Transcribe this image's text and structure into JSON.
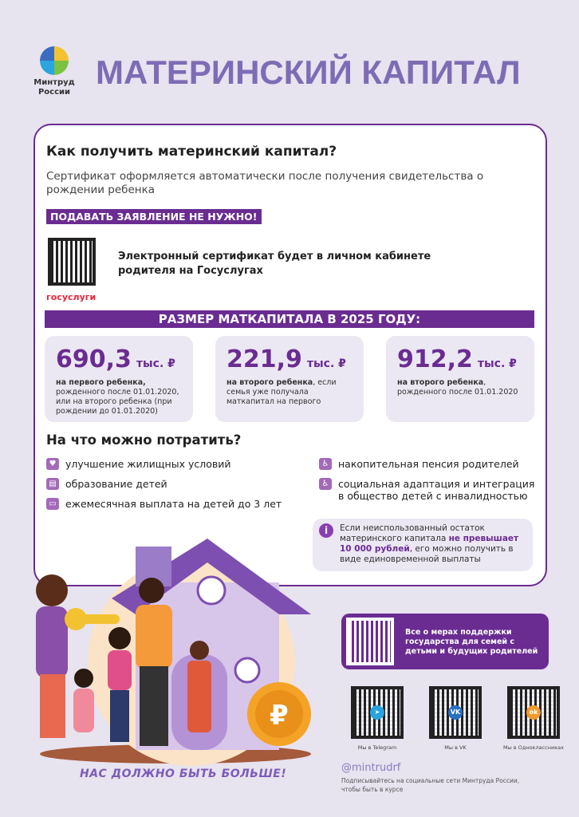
{
  "logo": {
    "line1": "Минтруд",
    "line2": "России"
  },
  "title": "МАТЕРИНСКИЙ КАПИТАЛ",
  "how": {
    "heading": "Как получить материнский капитал?",
    "text": "Сертификат оформляется автоматически после получения свидетельства о рождении ребенка",
    "banner": "ПОДАВАТЬ ЗАЯВЛЕНИЕ НЕ НУЖНО!",
    "gosuslugi_logo": "госуслуги",
    "ecert": "Электронный сертификат будет в личном кабинете родителя на Госуслугах"
  },
  "amounts": {
    "heading": "РАЗМЕР МАТКАПИТАЛА В 2025 ГОДУ:",
    "unit": "тыс. ₽",
    "items": [
      {
        "value": "690,3",
        "bold": "на первого ребенка,",
        "text": " рожденного после 01.01.2020, или на второго ребенка (при рождении до 01.01.2020)"
      },
      {
        "value": "221,9",
        "bold": "на второго ребенка",
        "text": ", если семья уже получала маткапитал на первого"
      },
      {
        "value": "912,2",
        "bold": "на второго ребенка",
        "text": ", рожденного после 01.01.2020"
      }
    ]
  },
  "spend": {
    "heading": "На что можно потратить?",
    "left": [
      {
        "icon": "house-heart-icon",
        "label": "улучшение жилищных условий"
      },
      {
        "icon": "book-icon",
        "label": "образование детей"
      },
      {
        "icon": "card-icon",
        "label": "ежемесячная выплата на детей до 3 лет"
      }
    ],
    "right": [
      {
        "icon": "rocking-chair-icon",
        "label": "накопительная пенсия родителей"
      },
      {
        "icon": "wheelchair-icon",
        "label": "социальная адаптация и интеграция в общество детей с инвалидностью"
      }
    ],
    "note": {
      "part1": "Если неиспользованный остаток материнского капитала ",
      "bold": "не превышает 10 000 рублей",
      "part2": ", его можно получить в виде единовременной выплаты"
    }
  },
  "slogan": "НАС ДОЛЖНО БЫТЬ БОЛЬШЕ!",
  "support": "Все о мерах поддержки государства для семей с детьми и будущих родителей",
  "social": [
    {
      "label": "Мы в Telegram",
      "color": "#2aa3dd",
      "glyph": "➤"
    },
    {
      "label": "Мы в VK",
      "color": "#2a6fc0",
      "glyph": "VK"
    },
    {
      "label": "Мы в Одноклассниках",
      "color": "#f29a2e",
      "glyph": "ok"
    }
  ],
  "handle": "@mintrudrf",
  "subscribe": "Подписывайтесь на социальные сети Минтруда России, чтобы быть в курсе"
}
